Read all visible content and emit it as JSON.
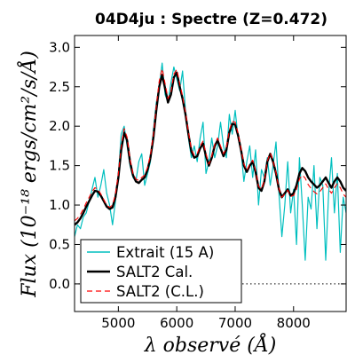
{
  "chart_data": {
    "type": "line",
    "title": "04D4ju : Spectre (Z=0.472)",
    "xlabel": "λ observé (Å)",
    "ylabel": "Flux (10⁻¹⁸ ergs/cm²/s/Å)",
    "xlim": [
      4250,
      8900
    ],
    "ylim": [
      -0.35,
      3.15
    ],
    "x_ticks": [
      5000,
      6000,
      7000,
      8000
    ],
    "x_tick_labels": [
      "5000",
      "6000",
      "7000",
      "8000"
    ],
    "y_ticks": [
      0.0,
      0.5,
      1.0,
      1.5,
      2.0,
      2.5,
      3.0
    ],
    "y_tick_labels": [
      "0.0",
      "0.5",
      "1.0",
      "1.5",
      "2.0",
      "2.5",
      "3.0"
    ],
    "zero_line": 0.0,
    "legend_position": "lower-left",
    "series": [
      {
        "name": "Extrait (15 A)",
        "color": "#00bfbf",
        "style": "solid",
        "x": [
          4250,
          4300,
          4350,
          4400,
          4450,
          4500,
          4550,
          4600,
          4650,
          4700,
          4750,
          4800,
          4850,
          4900,
          4950,
          5000,
          5050,
          5100,
          5150,
          5200,
          5250,
          5300,
          5350,
          5400,
          5450,
          5500,
          5550,
          5600,
          5650,
          5700,
          5750,
          5800,
          5850,
          5900,
          5950,
          6000,
          6050,
          6100,
          6150,
          6200,
          6250,
          6300,
          6350,
          6400,
          6450,
          6500,
          6550,
          6600,
          6650,
          6700,
          6750,
          6800,
          6850,
          6900,
          6950,
          7000,
          7050,
          7100,
          7150,
          7200,
          7250,
          7300,
          7350,
          7400,
          7450,
          7500,
          7550,
          7600,
          7650,
          7700,
          7750,
          7800,
          7850,
          7900,
          7950,
          8000,
          8050,
          8100,
          8150,
          8200,
          8250,
          8300,
          8350,
          8400,
          8450,
          8500,
          8550,
          8600,
          8650,
          8700,
          8750,
          8800,
          8850,
          8900
        ],
        "y": [
          0.6,
          0.75,
          0.7,
          0.85,
          0.9,
          1.05,
          1.2,
          1.35,
          1.1,
          1.25,
          1.45,
          1.15,
          1.0,
          0.75,
          1.05,
          1.4,
          1.9,
          2.0,
          1.75,
          1.5,
          1.35,
          1.3,
          1.55,
          1.65,
          1.25,
          1.4,
          1.55,
          1.95,
          2.3,
          2.5,
          2.8,
          2.4,
          2.3,
          2.55,
          2.75,
          2.6,
          2.45,
          2.7,
          2.2,
          1.85,
          1.6,
          1.75,
          1.55,
          1.85,
          2.05,
          1.4,
          1.55,
          1.85,
          1.6,
          1.75,
          2.05,
          1.75,
          1.6,
          2.15,
          1.9,
          2.2,
          1.85,
          1.7,
          1.3,
          1.55,
          1.75,
          1.35,
          1.7,
          1.0,
          1.45,
          1.35,
          1.6,
          1.25,
          1.5,
          1.8,
          1.15,
          0.6,
          1.0,
          1.55,
          0.9,
          1.2,
          0.5,
          1.6,
          1.0,
          0.3,
          1.1,
          0.95,
          1.5,
          0.7,
          1.35,
          1.25,
          0.3,
          1.15,
          1.6,
          0.9,
          1.4,
          0.4,
          1.1,
          0.9
        ]
      },
      {
        "name": "SALT2 Cal.",
        "color": "#000000",
        "style": "solid",
        "x": [
          4250,
          4300,
          4350,
          4400,
          4450,
          4500,
          4550,
          4600,
          4650,
          4700,
          4750,
          4800,
          4850,
          4900,
          4950,
          5000,
          5050,
          5100,
          5150,
          5200,
          5250,
          5300,
          5350,
          5400,
          5450,
          5500,
          5550,
          5600,
          5650,
          5700,
          5750,
          5800,
          5850,
          5900,
          5950,
          6000,
          6050,
          6100,
          6150,
          6200,
          6250,
          6300,
          6350,
          6400,
          6450,
          6500,
          6550,
          6600,
          6650,
          6700,
          6750,
          6800,
          6850,
          6900,
          6950,
          7000,
          7050,
          7100,
          7150,
          7200,
          7250,
          7300,
          7350,
          7400,
          7450,
          7500,
          7550,
          7600,
          7650,
          7700,
          7750,
          7800,
          7850,
          7900,
          7950,
          8000,
          8050,
          8100,
          8150,
          8200,
          8250,
          8300,
          8350,
          8400,
          8450,
          8500,
          8550,
          8600,
          8650,
          8700,
          8750,
          8800,
          8850,
          8900
        ],
        "y": [
          0.75,
          0.78,
          0.83,
          0.9,
          0.98,
          1.05,
          1.12,
          1.18,
          1.17,
          1.12,
          1.05,
          0.98,
          0.95,
          0.97,
          1.1,
          1.35,
          1.7,
          1.92,
          1.82,
          1.55,
          1.38,
          1.3,
          1.28,
          1.32,
          1.35,
          1.45,
          1.6,
          1.85,
          2.2,
          2.5,
          2.65,
          2.48,
          2.3,
          2.4,
          2.62,
          2.68,
          2.5,
          2.35,
          2.15,
          1.9,
          1.68,
          1.6,
          1.62,
          1.72,
          1.78,
          1.62,
          1.5,
          1.6,
          1.75,
          1.82,
          1.72,
          1.62,
          1.7,
          1.92,
          2.03,
          2.02,
          1.88,
          1.7,
          1.5,
          1.42,
          1.5,
          1.55,
          1.42,
          1.22,
          1.18,
          1.3,
          1.55,
          1.65,
          1.55,
          1.4,
          1.2,
          1.1,
          1.15,
          1.2,
          1.12,
          1.15,
          1.25,
          1.4,
          1.47,
          1.43,
          1.35,
          1.3,
          1.26,
          1.22,
          1.25,
          1.3,
          1.35,
          1.28,
          1.22,
          1.3,
          1.35,
          1.3,
          1.22,
          1.18
        ]
      },
      {
        "name": "SALT2 (C.L.)",
        "color": "#ff0000",
        "style": "dashed",
        "x": [
          4250,
          4300,
          4350,
          4400,
          4450,
          4500,
          4550,
          4600,
          4650,
          4700,
          4750,
          4800,
          4850,
          4900,
          4950,
          5000,
          5050,
          5100,
          5150,
          5200,
          5250,
          5300,
          5350,
          5400,
          5450,
          5500,
          5550,
          5600,
          5650,
          5700,
          5750,
          5800,
          5850,
          5900,
          5950,
          6000,
          6050,
          6100,
          6150,
          6200,
          6250,
          6300,
          6350,
          6400,
          6450,
          6500,
          6550,
          6600,
          6650,
          6700,
          6750,
          6800,
          6850,
          6900,
          6950,
          7000,
          7050,
          7100,
          7150,
          7200,
          7250,
          7300,
          7350,
          7400,
          7450,
          7500,
          7550,
          7600,
          7650,
          7700,
          7750,
          7800,
          7850,
          7900,
          7950,
          8000,
          8050,
          8100,
          8150,
          8200,
          8250,
          8300,
          8350,
          8400,
          8450,
          8500,
          8550,
          8600,
          8650,
          8700,
          8750,
          8800,
          8850,
          8900
        ],
        "y": [
          0.8,
          0.83,
          0.88,
          0.95,
          1.03,
          1.1,
          1.17,
          1.22,
          1.2,
          1.14,
          1.07,
          1.0,
          0.97,
          1.0,
          1.14,
          1.4,
          1.76,
          1.97,
          1.86,
          1.58,
          1.4,
          1.33,
          1.31,
          1.35,
          1.38,
          1.48,
          1.63,
          1.9,
          2.26,
          2.57,
          2.73,
          2.54,
          2.35,
          2.44,
          2.66,
          2.72,
          2.54,
          2.38,
          2.18,
          1.93,
          1.71,
          1.63,
          1.65,
          1.75,
          1.81,
          1.65,
          1.52,
          1.62,
          1.77,
          1.85,
          1.75,
          1.65,
          1.73,
          1.95,
          2.06,
          2.05,
          1.91,
          1.72,
          1.52,
          1.44,
          1.52,
          1.57,
          1.44,
          1.24,
          1.2,
          1.31,
          1.56,
          1.66,
          1.56,
          1.41,
          1.21,
          1.1,
          1.14,
          1.19,
          1.11,
          1.12,
          1.2,
          1.33,
          1.38,
          1.34,
          1.26,
          1.21,
          1.17,
          1.14,
          1.17,
          1.22,
          1.27,
          1.2,
          1.15,
          1.22,
          1.27,
          1.22,
          1.14,
          1.1
        ]
      }
    ]
  }
}
